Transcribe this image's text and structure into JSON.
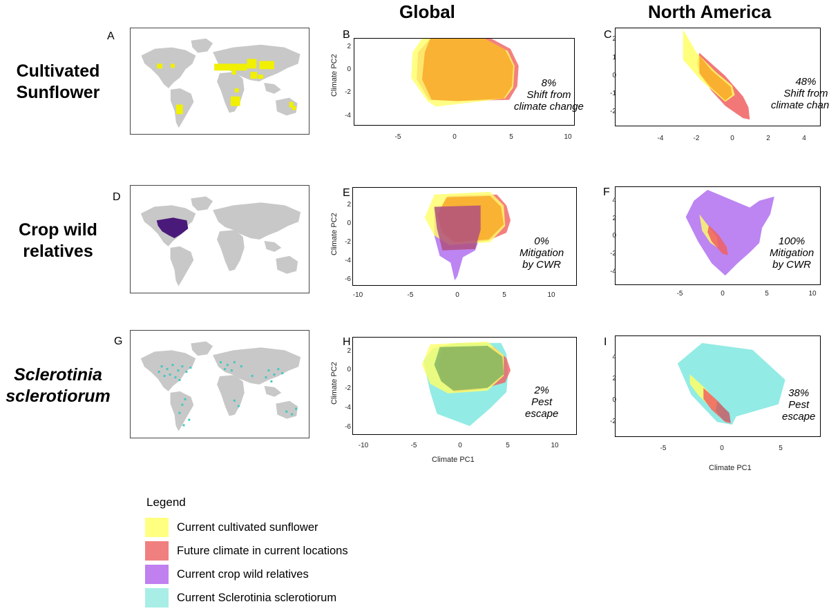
{
  "columns": {
    "global": "Global",
    "north_america": "North America"
  },
  "rows": {
    "sunflower": {
      "line1": "Cultivated",
      "line2": "Sunflower"
    },
    "cwr": {
      "line1": "Crop wild",
      "line2": "relatives"
    },
    "sclerotinia": {
      "line1": "Sclerotinia",
      "line2": "sclerotiorum"
    }
  },
  "panels": {
    "A": {
      "letter": "A"
    },
    "B": {
      "letter": "B",
      "annot": [
        "8%",
        "Shift from",
        "climate change"
      ],
      "xticks": [
        "-5",
        "0",
        "5",
        "10"
      ],
      "yticks": [
        "2",
        "0",
        "-2",
        "-4"
      ]
    },
    "C": {
      "letter": "C",
      "annot": [
        "48%",
        "Shift from",
        "climate change"
      ],
      "xticks": [
        "-4",
        "-2",
        "0",
        "2",
        "4"
      ],
      "yticks": [
        "2",
        "1",
        "0",
        "-1",
        "-2"
      ]
    },
    "D": {
      "letter": "D"
    },
    "E": {
      "letter": "E",
      "annot": [
        "0%",
        "Mitigation",
        "by CWR"
      ],
      "xticks": [
        "-10",
        "-5",
        "0",
        "5",
        "10"
      ],
      "yticks": [
        "2",
        "0",
        "-2",
        "-4",
        "-6"
      ]
    },
    "F": {
      "letter": "F",
      "annot": [
        "100%",
        "Mitigation",
        "by CWR"
      ],
      "xticks": [
        "-5",
        "0",
        "5",
        "10"
      ],
      "yticks": [
        "4",
        "2",
        "0",
        "-2",
        "-4"
      ]
    },
    "G": {
      "letter": "G"
    },
    "H": {
      "letter": "H",
      "annot": [
        "2%",
        "Pest",
        "escape"
      ],
      "xticks": [
        "-10",
        "-5",
        "0",
        "5",
        "10"
      ],
      "yticks": [
        "2",
        "0",
        "-2",
        "-4",
        "-6"
      ]
    },
    "I": {
      "letter": "I",
      "annot": [
        "38%",
        "Pest",
        "escape"
      ],
      "xticks": [
        "-5",
        "0",
        "5"
      ],
      "yticks": [
        "4",
        "2",
        "0",
        "-2"
      ]
    }
  },
  "axes": {
    "xlabel": "Climate PC1",
    "ylabel": "Climate PC2"
  },
  "legend": {
    "title": "Legend",
    "items": [
      {
        "label": "Current cultivated sunflower",
        "color": "#ffff80"
      },
      {
        "label": "Future climate in current locations",
        "color": "#f08080"
      },
      {
        "label": "Current crop wild relatives",
        "color": "#c080f0"
      },
      {
        "label": "Current Sclerotinia sclerotiorum",
        "color": "#a8eee6"
      }
    ]
  },
  "colors": {
    "sunflower": "#ffff66",
    "future": "#f06060",
    "cwr": "#b070f0",
    "sclerotinia": "#80e8e0",
    "land": "#c8c8c8",
    "sunflower_points": "#f0f000",
    "cwr_points": "#4a1a7a",
    "scl_points": "#40c8c0"
  }
}
